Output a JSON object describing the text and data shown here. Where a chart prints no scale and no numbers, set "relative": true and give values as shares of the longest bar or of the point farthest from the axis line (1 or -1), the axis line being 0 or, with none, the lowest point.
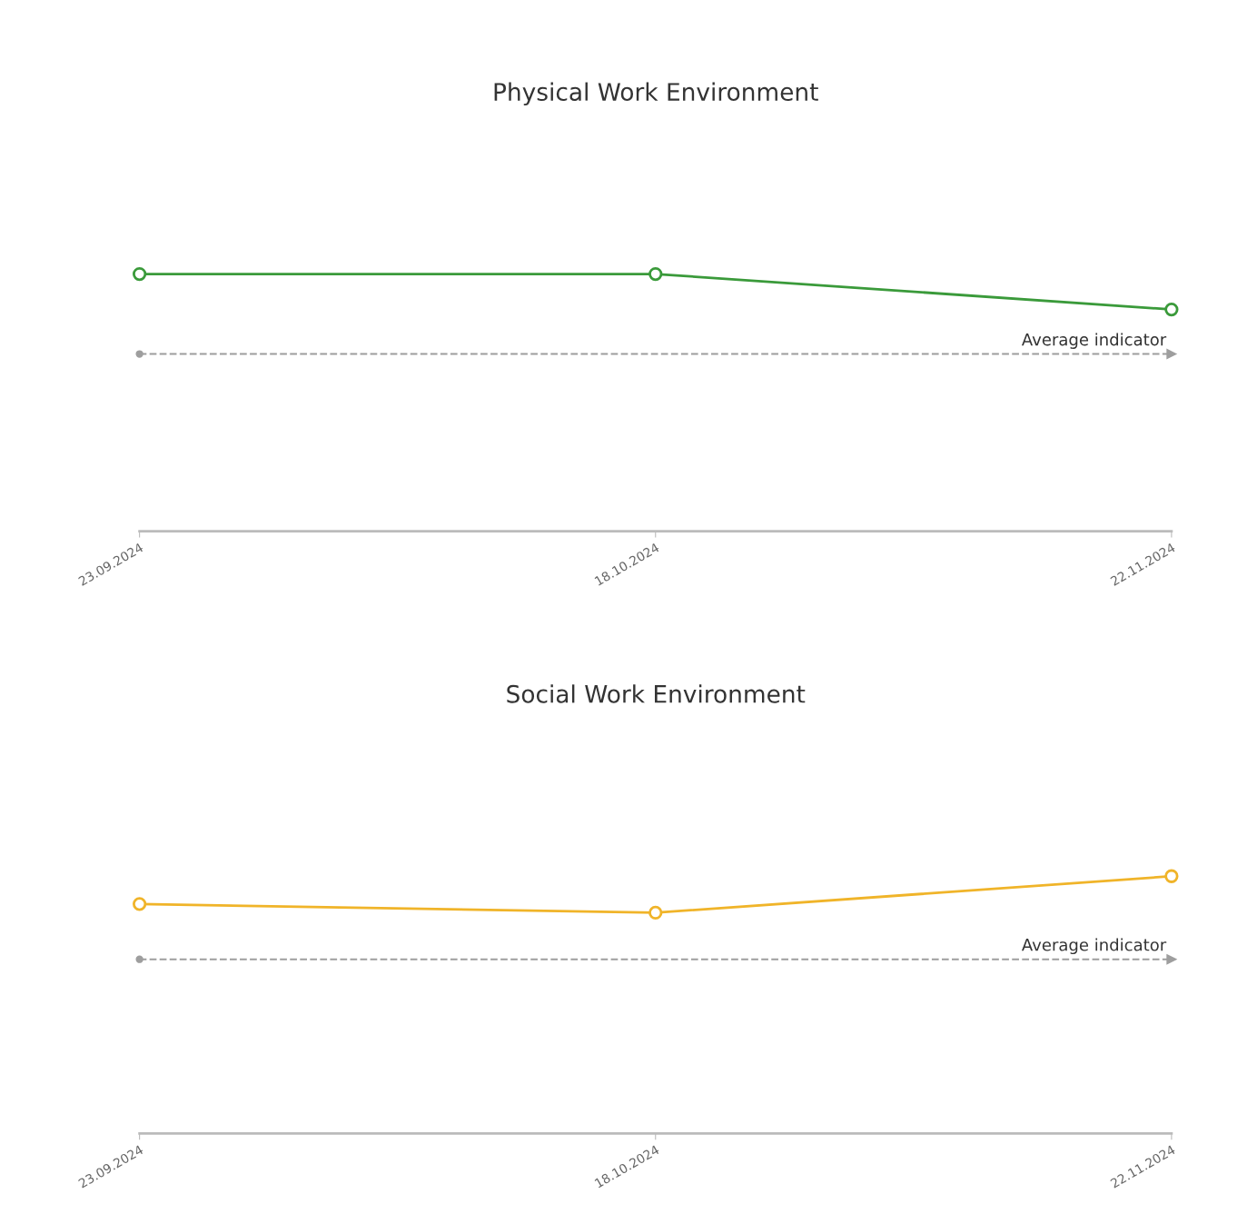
{
  "chart_data": [
    {
      "type": "line",
      "title": "Physical Work Environment",
      "relative": true,
      "categories": [
        "23.09.2024",
        "18.10.2024",
        "22.11.2024"
      ],
      "marker": "circle",
      "line_style": "solid",
      "series": [
        {
          "color": "#3a9a3a",
          "values": [
            1,
            1,
            0.862
          ]
        }
      ],
      "ref_lines": [
        {
          "axis": "y",
          "value": 0.689,
          "label": "Average indicator",
          "color": "#9e9e9e",
          "line_style": "dashed"
        }
      ]
    },
    {
      "type": "line",
      "title": "Social Work Environment",
      "relative": true,
      "categories": [
        "23.09.2024",
        "18.10.2024",
        "22.11.2024"
      ],
      "marker": "circle",
      "line_style": "solid",
      "series": [
        {
          "color": "#f0b429",
          "values": [
            0.892,
            0.858,
            1
          ]
        }
      ],
      "ref_lines": [
        {
          "axis": "y",
          "value": 0.677,
          "label": "Average indicator",
          "color": "#9e9e9e",
          "line_style": "dashed"
        }
      ]
    }
  ]
}
